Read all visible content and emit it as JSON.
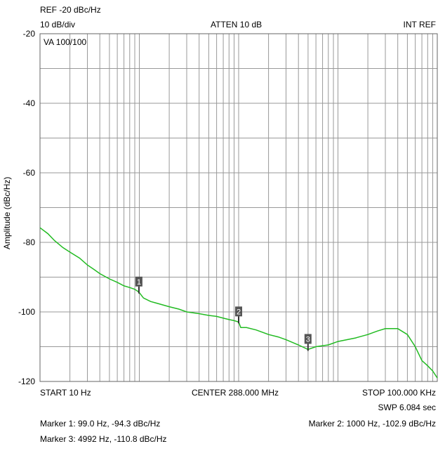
{
  "header": {
    "ref": "REF -20 dBc/Hz",
    "scale": "10 dB/div",
    "atten": "ATTEN 10 dB",
    "ref_source": "INT REF",
    "va": "VA 100/100"
  },
  "footer": {
    "start": "START 10 Hz",
    "center": "CENTER 288.000 MHz",
    "stop": "STOP 100.000 KHz",
    "sweep": "SWP 6.084 sec",
    "marker1": "Marker 1: 99.0 Hz, -94.3 dBc/Hz",
    "marker2": "Marker 2: 1000 Hz, -102.9 dBc/Hz",
    "marker3": "Marker 3: 4992 Hz, -110.8 dBc/Hz"
  },
  "chart_data": {
    "type": "line",
    "title": "",
    "xlabel": "",
    "ylabel": "Amplitude (dBc/Hz)",
    "x_scale": "log",
    "xlim": [
      10,
      100000
    ],
    "ylim": [
      -120,
      -20
    ],
    "y_ticks": [
      "-20",
      "-40",
      "-60",
      "-80",
      "-100",
      "-120"
    ],
    "y_tick_values": [
      -20,
      -40,
      -60,
      -80,
      -100,
      -120
    ],
    "grid": true,
    "colors": {
      "trace": "#22bb22",
      "grid": "#999999",
      "marker_box": "#555555"
    },
    "series": [
      {
        "x": [
          10,
          12,
          14,
          17,
          20,
          25,
          30,
          35,
          40,
          50,
          60,
          70,
          80,
          90,
          99,
          110,
          130,
          150,
          200,
          250,
          300,
          400,
          500,
          600,
          700,
          800,
          900,
          1000,
          1050,
          1200,
          1500,
          2000,
          2500,
          3000,
          4000,
          4992,
          6000,
          8000,
          10000,
          15000,
          20000,
          25000,
          30000,
          35000,
          40000,
          50000,
          60000,
          70000,
          80000,
          90000,
          100000
        ],
        "y": [
          -75.8,
          -77.5,
          -79.5,
          -81.5,
          -82.8,
          -84.5,
          -86.5,
          -87.8,
          -89.0,
          -90.5,
          -91.5,
          -92.5,
          -93.0,
          -93.5,
          -94.3,
          -96.0,
          -97.0,
          -97.5,
          -98.5,
          -99.2,
          -100.0,
          -100.5,
          -101.0,
          -101.3,
          -101.8,
          -102.2,
          -102.5,
          -102.9,
          -104.5,
          -104.5,
          -105.2,
          -106.5,
          -107.2,
          -108.0,
          -109.5,
          -110.8,
          -110.0,
          -109.5,
          -108.5,
          -107.5,
          -106.5,
          -105.5,
          -104.8,
          -104.8,
          -104.8,
          -106.5,
          -110.0,
          -114.0,
          -115.5,
          -117.0,
          -119.0
        ]
      }
    ],
    "markers": [
      {
        "label": "1",
        "x": 99.0,
        "y": -94.3
      },
      {
        "label": "2",
        "x": 1000,
        "y": -102.9
      },
      {
        "label": "3",
        "x": 4992,
        "y": -110.8
      }
    ]
  }
}
